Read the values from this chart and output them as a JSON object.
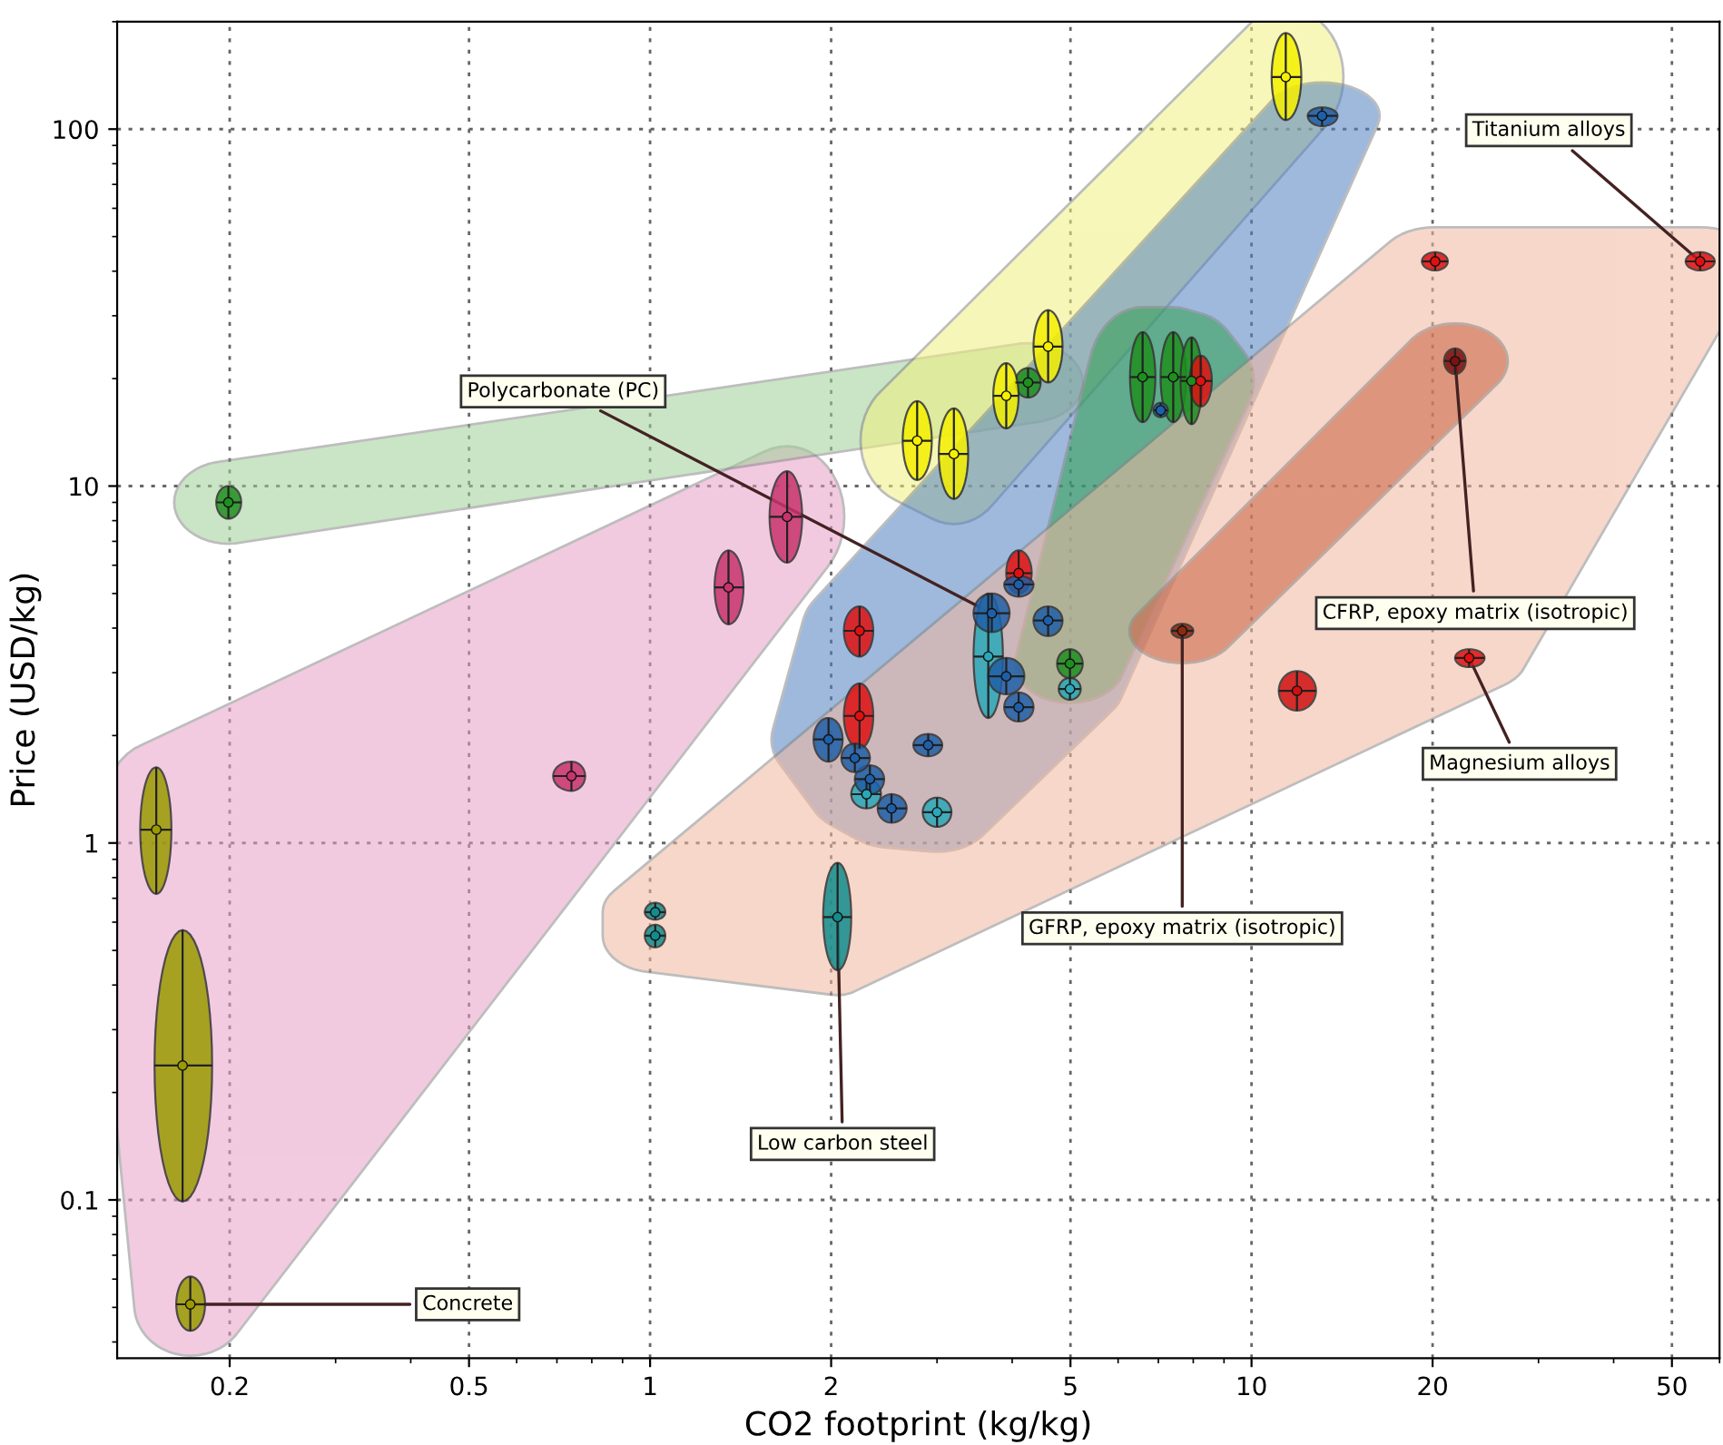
{
  "chart_data": {
    "type": "scatter",
    "xlabel": "CO2 footprint (kg/kg)",
    "ylabel": "Price (USD/kg)",
    "log": "xy",
    "grid": true,
    "legend": false,
    "xlim": [
      0.13,
      60
    ],
    "ylim": [
      0.036,
      200
    ],
    "xticks": [
      0.2,
      0.5,
      1,
      2,
      5,
      10,
      20,
      50
    ],
    "yticks": [
      0.1,
      1,
      10,
      100
    ],
    "series": [
      {
        "color": "#e8a0c8",
        "x": [
          0.151,
          0.167,
          0.172,
          1.69,
          1.35,
          0.74
        ],
        "values": [
          1.09,
          0.238,
          0.051,
          8.2,
          5.2,
          1.54
        ],
        "xerrors": [
          [
            0.142,
            0.16
          ],
          [
            0.15,
            0.187
          ],
          [
            0.163,
            0.182
          ],
          [
            1.58,
            1.79
          ],
          [
            1.28,
            1.43
          ],
          [
            0.69,
            0.78
          ]
        ],
        "errors": [
          [
            0.72,
            1.63
          ],
          [
            0.099,
            0.57
          ],
          [
            0.043,
            0.061
          ],
          [
            6.1,
            11.0
          ],
          [
            4.1,
            6.6
          ],
          [
            1.4,
            1.69
          ]
        ],
        "colors": [
          "#9a9a00",
          "#9a9a00",
          "#9a9a00",
          "#c8336e",
          "#c8336e",
          "#c8336e"
        ]
      },
      {
        "color": "#a0d098",
        "x": [
          0.199,
          4.25
        ],
        "values": [
          9.0,
          19.5
        ],
        "xerrors": [
          [
            0.19,
            0.209
          ],
          [
            4.05,
            4.46
          ]
        ],
        "errors": [
          [
            8.1,
            10.0
          ],
          [
            17.7,
            21.4
          ]
        ],
        "colors": [
          "#1f8f1f",
          "#1f8f1f"
        ]
      },
      {
        "color": "#f0f080",
        "x": [
          2.78,
          3.2,
          3.91,
          4.59,
          11.4
        ],
        "values": [
          13.4,
          12.3,
          17.9,
          24.6,
          140
        ],
        "xerrors": [
          [
            2.63,
            2.94
          ],
          [
            3.02,
            3.38
          ],
          [
            3.72,
            4.1
          ],
          [
            4.34,
            4.85
          ],
          [
            10.8,
            12.1
          ]
        ],
        "errors": [
          [
            10.4,
            17.3
          ],
          [
            9.2,
            16.5
          ],
          [
            14.5,
            22.1
          ],
          [
            19.5,
            31.1
          ],
          [
            106,
            186
          ]
        ],
        "colors": [
          "#f5f000",
          "#f5f000",
          "#f5f000",
          "#f5f000",
          "#f5f000"
        ]
      },
      {
        "color": "#5080c0",
        "x": [
          13.1,
          1.98,
          2.19,
          2.32,
          2.52,
          2.9,
          3.7,
          4.1,
          4.59,
          3.91,
          4.1,
          4.99,
          2.29,
          3.0,
          3.65,
          2.23,
          2.23,
          4.1
        ],
        "values": [
          109,
          1.95,
          1.73,
          1.51,
          1.25,
          1.88,
          4.4,
          5.3,
          4.2,
          2.93,
          2.4,
          2.7,
          1.37,
          1.22,
          3.33,
          3.93,
          2.27,
          5.7
        ],
        "xerrors": [
          [
            12.4,
            13.9
          ],
          [
            1.87,
            2.09
          ],
          [
            2.08,
            2.32
          ],
          [
            2.19,
            2.45
          ],
          [
            2.39,
            2.67
          ],
          [
            2.74,
            3.06
          ],
          [
            3.45,
            3.96
          ],
          [
            3.88,
            4.34
          ],
          [
            4.34,
            4.85
          ],
          [
            3.65,
            4.19
          ],
          [
            3.88,
            4.34
          ],
          [
            4.78,
            5.2
          ],
          [
            2.16,
            2.42
          ],
          [
            2.84,
            3.17
          ],
          [
            3.45,
            3.86
          ],
          [
            2.1,
            2.35
          ],
          [
            2.1,
            2.35
          ],
          [
            3.91,
            4.31
          ]
        ],
        "errors": [
          [
            102,
            115
          ],
          [
            1.69,
            2.24
          ],
          [
            1.58,
            1.9
          ],
          [
            1.37,
            1.65
          ],
          [
            1.14,
            1.37
          ],
          [
            1.75,
            2.02
          ],
          [
            3.9,
            5.0
          ],
          [
            4.9,
            5.6
          ],
          [
            3.8,
            4.6
          ],
          [
            2.61,
            3.3
          ],
          [
            2.19,
            2.64
          ],
          [
            2.52,
            2.9
          ],
          [
            1.25,
            1.51
          ],
          [
            1.11,
            1.34
          ],
          [
            2.24,
            5.0
          ],
          [
            3.33,
            4.6
          ],
          [
            1.84,
            2.8
          ],
          [
            5.0,
            6.6
          ]
        ],
        "colors": [
          "#1f5fa8",
          "#1f5fa8",
          "#1f5fa8",
          "#1f5fa8",
          "#1f5fa8",
          "#1f5fa8",
          "#1f5fa8",
          "#1f5fa8",
          "#1f5fa8",
          "#1f5fa8",
          "#1f5fa8",
          "#2aa8b8",
          "#2aa8b8",
          "#2aa8b8",
          "#2aa8b8",
          "#e01010",
          "#e01010",
          "#e01010"
        ]
      },
      {
        "color": "#30a050",
        "x": [
          6.59,
          7.41,
          7.95,
          8.23,
          7.06,
          4.99
        ],
        "values": [
          20.2,
          20.2,
          19.7,
          19.7,
          16.3,
          3.18
        ],
        "xerrors": [
          [
            6.28,
            6.92
          ],
          [
            7.06,
            7.78
          ],
          [
            7.62,
            8.28
          ],
          [
            7.89,
            8.59
          ],
          [
            6.87,
            7.26
          ],
          [
            4.75,
            5.24
          ]
        ],
        "errors": [
          [
            15.1,
            27.0
          ],
          [
            15.1,
            27.0
          ],
          [
            14.9,
            26.1
          ],
          [
            16.7,
            23.2
          ],
          [
            15.6,
            17.1
          ],
          [
            2.9,
            3.49
          ]
        ],
        "colors": [
          "#1f8f1f",
          "#1f8f1f",
          "#1f8f1f",
          "#e01010",
          "#1f5fa8",
          "#1f8f1f"
        ]
      },
      {
        "color": "#f2b8a0",
        "x": [
          2.05,
          1.02,
          1.02,
          20.2,
          55.7,
          11.9,
          23.0
        ],
        "values": [
          0.62,
          0.64,
          0.55,
          42.6,
          42.6,
          2.67,
          3.3
        ],
        "xerrors": [
          [
            1.94,
            2.16
          ],
          [
            0.98,
            1.06
          ],
          [
            0.98,
            1.06
          ],
          [
            19.2,
            21.2
          ],
          [
            52.7,
            58.9
          ],
          [
            11.1,
            12.8
          ],
          [
            21.8,
            24.4
          ]
        ],
        "errors": [
          [
            0.44,
            0.88
          ],
          [
            0.61,
            0.68
          ],
          [
            0.51,
            0.59
          ],
          [
            40.2,
            45.2
          ],
          [
            40.2,
            45.2
          ],
          [
            2.35,
            3.03
          ],
          [
            3.11,
            3.49
          ]
        ],
        "colors": [
          "#128c8c",
          "#128c8c",
          "#128c8c",
          "#e01010",
          "#e01010",
          "#d01010",
          "#e01010"
        ]
      },
      {
        "color": "#c86040",
        "x": [
          21.8,
          7.67
        ],
        "values": [
          22.4,
          3.93
        ],
        "xerrors": [
          [
            20.9,
            22.7
          ],
          [
            7.36,
            8.0
          ]
        ],
        "errors": [
          [
            20.6,
            24.3
          ],
          [
            3.75,
            4.11
          ]
        ],
        "colors": [
          "#7a1212",
          "#8a2a10"
        ]
      }
    ],
    "annotations": [
      {
        "text": "Titanium alloys",
        "x": 55.7,
        "y": 42.6
      },
      {
        "text": "CFRP, epoxy matrix (isotropic)",
        "x": 21.8,
        "y": 22.4
      },
      {
        "text": "Magnesium alloys",
        "x": 23.0,
        "y": 3.3
      },
      {
        "text": "GFRP, epoxy matrix (isotropic)",
        "x": 7.67,
        "y": 3.93
      },
      {
        "text": "Polycarbonate (PC)",
        "x": 3.7,
        "y": 4.4
      },
      {
        "text": "Low carbon steel",
        "x": 2.05,
        "y": 0.62
      },
      {
        "text": "Concrete",
        "x": 0.172,
        "y": 0.051
      }
    ]
  }
}
